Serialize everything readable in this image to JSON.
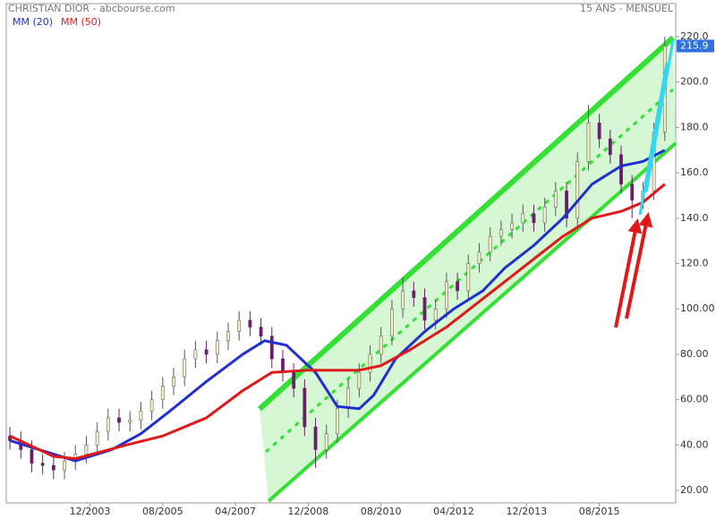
{
  "chart_data": {
    "type": "candlestick",
    "title": "CHRISTIAN DIOR - abcbourse.com",
    "subtitle": "15 ANS - MENSUEL",
    "x": [
      "02/2002",
      "05/2002",
      "08/2002",
      "11/2002",
      "02/2003",
      "05/2003",
      "08/2003",
      "11/2003",
      "02/2004",
      "05/2004",
      "08/2004",
      "11/2004",
      "02/2005",
      "05/2005",
      "08/2005",
      "11/2005",
      "02/2006",
      "05/2006",
      "08/2006",
      "11/2006",
      "02/2007",
      "05/2007",
      "08/2007",
      "11/2007",
      "02/2008",
      "05/2008",
      "08/2008",
      "11/2008",
      "02/2009",
      "05/2009",
      "08/2009",
      "11/2009",
      "02/2010",
      "05/2010",
      "08/2010",
      "11/2010",
      "02/2011",
      "05/2011",
      "08/2011",
      "11/2011",
      "02/2012",
      "05/2012",
      "08/2012",
      "11/2012",
      "02/2013",
      "05/2013",
      "08/2013",
      "11/2013",
      "02/2014",
      "05/2014",
      "08/2014",
      "11/2014",
      "02/2015",
      "05/2015",
      "08/2015",
      "11/2015",
      "02/2016",
      "05/2016",
      "08/2016",
      "11/2016",
      "02/2017"
    ],
    "open": [
      44,
      42,
      38,
      32,
      31,
      29,
      33,
      36,
      40,
      46,
      52,
      50,
      51,
      55,
      60,
      66,
      70,
      78,
      82,
      80,
      86,
      90,
      95,
      92,
      88,
      78,
      72,
      65,
      48,
      38,
      45,
      56,
      65,
      72,
      80,
      88,
      100,
      108,
      105,
      95,
      100,
      112,
      108,
      120,
      125,
      132,
      135,
      138,
      142,
      138,
      145,
      152,
      140,
      165,
      182,
      175,
      168,
      155,
      148,
      152,
      178
    ],
    "high": [
      48,
      46,
      42,
      36,
      35,
      37,
      40,
      44,
      50,
      56,
      56,
      55,
      59,
      64,
      70,
      74,
      82,
      86,
      86,
      90,
      94,
      99,
      99,
      96,
      92,
      82,
      76,
      69,
      52,
      49,
      60,
      69,
      76,
      84,
      92,
      104,
      114,
      112,
      109,
      104,
      116,
      116,
      124,
      129,
      136,
      139,
      142,
      146,
      146,
      149,
      156,
      156,
      169,
      190,
      186,
      179,
      172,
      159,
      156,
      182,
      220
    ],
    "low": [
      38,
      34,
      28,
      27,
      25,
      25,
      29,
      32,
      36,
      42,
      46,
      46,
      47,
      51,
      56,
      62,
      66,
      74,
      76,
      76,
      82,
      86,
      88,
      84,
      74,
      68,
      61,
      44,
      30,
      34,
      41,
      52,
      61,
      68,
      76,
      84,
      96,
      101,
      91,
      91,
      96,
      104,
      104,
      116,
      121,
      128,
      131,
      134,
      134,
      134,
      141,
      136,
      136,
      161,
      171,
      164,
      151,
      140,
      144,
      148,
      174
    ],
    "close": [
      42,
      38,
      32,
      31,
      29,
      33,
      36,
      40,
      46,
      52,
      50,
      51,
      55,
      60,
      66,
      70,
      78,
      82,
      80,
      86,
      90,
      95,
      92,
      88,
      78,
      72,
      65,
      48,
      38,
      45,
      56,
      65,
      72,
      80,
      88,
      100,
      108,
      105,
      95,
      100,
      112,
      108,
      120,
      125,
      132,
      135,
      138,
      142,
      138,
      145,
      152,
      140,
      165,
      182,
      175,
      168,
      155,
      148,
      152,
      178,
      215.9
    ],
    "up_color": "#f4f0c4",
    "down_color": "#6b1f6b",
    "series": [
      {
        "name": "MM (20)",
        "color": "#1f2fd0",
        "x": [
          "02/2002",
          "08/2003",
          "06/2004",
          "02/2005",
          "10/2005",
          "08/2006",
          "06/2007",
          "12/2007",
          "06/2008",
          "02/2009",
          "08/2009",
          "02/2010",
          "06/2010",
          "12/2010",
          "08/2011",
          "04/2012",
          "12/2012",
          "06/2013",
          "02/2014",
          "10/2014",
          "06/2015",
          "02/2016",
          "08/2016",
          "02/2017"
        ],
        "values": [
          42,
          33,
          38,
          45,
          55,
          68,
          80,
          86,
          84,
          72,
          57,
          56,
          62,
          78,
          90,
          100,
          108,
          118,
          128,
          140,
          155,
          163,
          165,
          170
        ]
      },
      {
        "name": "MM (50)",
        "color": "#e01818",
        "x": [
          "02/2002",
          "02/2003",
          "08/2003",
          "10/2004",
          "08/2005",
          "08/2006",
          "06/2007",
          "02/2008",
          "12/2008",
          "02/2010",
          "08/2010",
          "04/2011",
          "02/2012",
          "10/2012",
          "06/2013",
          "02/2014",
          "10/2014",
          "06/2015",
          "02/2016",
          "08/2016",
          "02/2017"
        ],
        "values": [
          44,
          35,
          34,
          40,
          44,
          52,
          64,
          72,
          73,
          73,
          75,
          82,
          92,
          102,
          112,
          122,
          132,
          140,
          143,
          147,
          155
        ]
      }
    ],
    "xlim": [
      "01/2002",
      "05/2017"
    ],
    "xticks": [
      "12/2003",
      "08/2005",
      "04/2007",
      "12/2008",
      "08/2010",
      "04/2012",
      "12/2013",
      "08/2015"
    ],
    "ylim": [
      14.5,
      234.6
    ],
    "yticks": [
      {
        "value": 20,
        "label": "20.00"
      },
      {
        "value": 40,
        "label": "40.00"
      },
      {
        "value": 60,
        "label": "60.00"
      },
      {
        "value": 80,
        "label": "80.00"
      },
      {
        "value": 100,
        "label": "100.00"
      },
      {
        "value": 120,
        "label": "120.0"
      },
      {
        "value": 140,
        "label": "140.0"
      },
      {
        "value": 160,
        "label": "160.0"
      },
      {
        "value": 180,
        "label": "180.0"
      },
      {
        "value": 200,
        "label": "200.0"
      },
      {
        "value": 220,
        "label": "220.0"
      }
    ],
    "grid": false
  }
}
